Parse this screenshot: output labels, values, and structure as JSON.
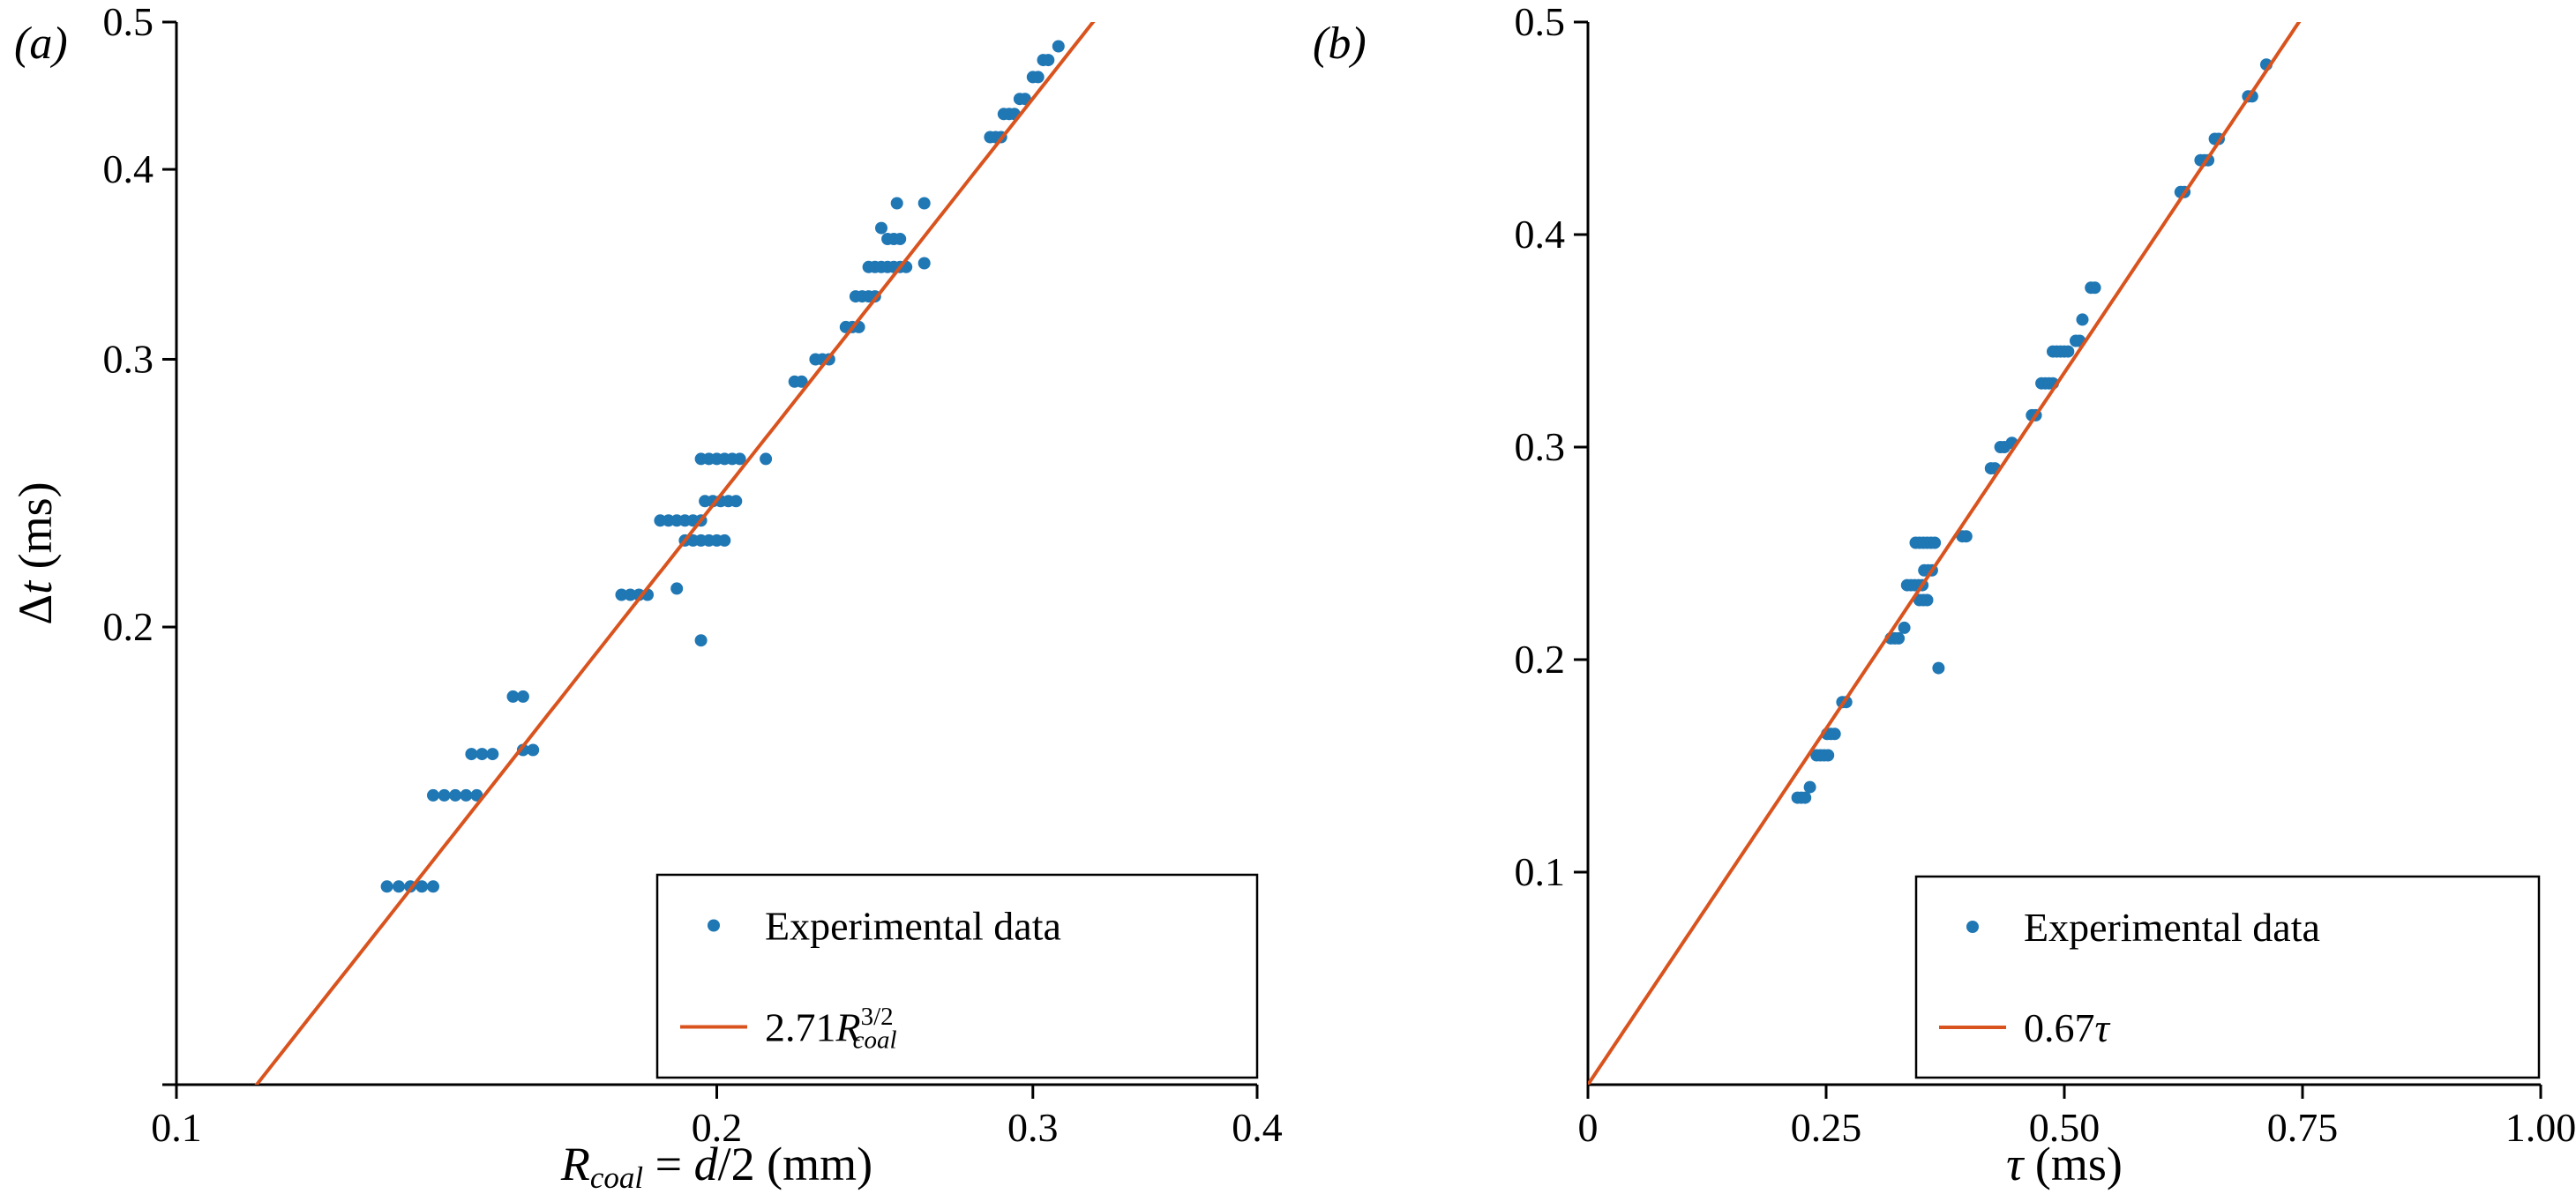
{
  "figure": {
    "background": "#ffffff",
    "text_color": "#000000",
    "data_color": "#1f77b4",
    "fit_color": "#d9531e"
  },
  "chart_data": [
    {
      "type": "scatter",
      "panel_label": "(a)",
      "panel_label_segments": [
        {
          "t": "(a)",
          "style": "italic"
        }
      ],
      "x_scale": "log",
      "y_scale": "log",
      "x_domain": [
        0.1,
        0.4
      ],
      "y_domain": [
        0.1,
        0.5
      ],
      "x_axis_label": "R_coal = d/2 (mm)",
      "y_axis_label": "Delta t (ms)",
      "x_title_segments": [
        {
          "t": "R",
          "style": "italic"
        },
        {
          "t": "coal",
          "pos": "sub",
          "style": "italic"
        },
        {
          "t": " = "
        },
        {
          "t": "d",
          "style": "italic"
        },
        {
          "t": "/2 (mm)"
        }
      ],
      "y_title_segments": [
        {
          "t": "Δ"
        },
        {
          "t": "t",
          "style": "italic"
        },
        {
          "t": " (ms)"
        }
      ],
      "x_ticks": [
        {
          "v": 0.1,
          "label": "0.1"
        },
        {
          "v": 0.2,
          "label": "0.2"
        },
        {
          "v": 0.3,
          "label": "0.3"
        },
        {
          "v": 0.4,
          "label": "0.4"
        }
      ],
      "y_ticks": [
        {
          "v": 0.5,
          "label": "0.5"
        },
        {
          "v": 0.4,
          "label": "0.4"
        },
        {
          "v": 0.3,
          "label": "0.3"
        },
        {
          "v": 0.2,
          "label": "0.2"
        },
        {
          "v": 0.1,
          "label": ""
        }
      ],
      "series": [
        {
          "name": "Experimental data",
          "kind": "scatter",
          "color": "#1f77b4",
          "points": [
            [
              0.131,
              0.135
            ],
            [
              0.133,
              0.135
            ],
            [
              0.135,
              0.135
            ],
            [
              0.137,
              0.135
            ],
            [
              0.139,
              0.135
            ],
            [
              0.139,
              0.155
            ],
            [
              0.141,
              0.155
            ],
            [
              0.143,
              0.155
            ],
            [
              0.145,
              0.155
            ],
            [
              0.147,
              0.155
            ],
            [
              0.146,
              0.165
            ],
            [
              0.148,
              0.165
            ],
            [
              0.15,
              0.165
            ],
            [
              0.156,
              0.166
            ],
            [
              0.158,
              0.166
            ],
            [
              0.154,
              0.18
            ],
            [
              0.156,
              0.18
            ],
            [
              0.177,
              0.21
            ],
            [
              0.179,
              0.21
            ],
            [
              0.181,
              0.21
            ],
            [
              0.183,
              0.21
            ],
            [
              0.19,
              0.212
            ],
            [
              0.196,
              0.196
            ],
            [
              0.186,
              0.235
            ],
            [
              0.188,
              0.235
            ],
            [
              0.19,
              0.235
            ],
            [
              0.192,
              0.235
            ],
            [
              0.194,
              0.235
            ],
            [
              0.196,
              0.235
            ],
            [
              0.192,
              0.228
            ],
            [
              0.194,
              0.228
            ],
            [
              0.196,
              0.228
            ],
            [
              0.198,
              0.228
            ],
            [
              0.2,
              0.228
            ],
            [
              0.202,
              0.228
            ],
            [
              0.197,
              0.242
            ],
            [
              0.199,
              0.242
            ],
            [
              0.201,
              0.242
            ],
            [
              0.203,
              0.242
            ],
            [
              0.205,
              0.242
            ],
            [
              0.196,
              0.258
            ],
            [
              0.198,
              0.258
            ],
            [
              0.2,
              0.258
            ],
            [
              0.202,
              0.258
            ],
            [
              0.204,
              0.258
            ],
            [
              0.206,
              0.258
            ],
            [
              0.213,
              0.258
            ],
            [
              0.221,
              0.29
            ],
            [
              0.223,
              0.29
            ],
            [
              0.227,
              0.3
            ],
            [
              0.229,
              0.3
            ],
            [
              0.231,
              0.3
            ],
            [
              0.236,
              0.315
            ],
            [
              0.238,
              0.315
            ],
            [
              0.24,
              0.315
            ],
            [
              0.239,
              0.33
            ],
            [
              0.241,
              0.33
            ],
            [
              0.243,
              0.33
            ],
            [
              0.245,
              0.33
            ],
            [
              0.243,
              0.345
            ],
            [
              0.245,
              0.345
            ],
            [
              0.247,
              0.345
            ],
            [
              0.249,
              0.345
            ],
            [
              0.251,
              0.345
            ],
            [
              0.253,
              0.345
            ],
            [
              0.255,
              0.345
            ],
            [
              0.261,
              0.347
            ],
            [
              0.249,
              0.36
            ],
            [
              0.251,
              0.36
            ],
            [
              0.253,
              0.36
            ],
            [
              0.247,
              0.366
            ],
            [
              0.252,
              0.38
            ],
            [
              0.261,
              0.38
            ],
            [
              0.284,
              0.42
            ],
            [
              0.286,
              0.42
            ],
            [
              0.288,
              0.42
            ],
            [
              0.289,
              0.435
            ],
            [
              0.291,
              0.435
            ],
            [
              0.293,
              0.435
            ],
            [
              0.295,
              0.445
            ],
            [
              0.297,
              0.445
            ],
            [
              0.3,
              0.46
            ],
            [
              0.302,
              0.46
            ],
            [
              0.304,
              0.472
            ],
            [
              0.306,
              0.472
            ],
            [
              0.31,
              0.482
            ]
          ]
        },
        {
          "name": "2.71 R_coal^(3/2)",
          "kind": "line",
          "color": "#d9531e",
          "fn": {
            "form": "power",
            "a": 2.71,
            "b": 1.5
          }
        }
      ],
      "legend": {
        "position": "lower right",
        "entries": [
          {
            "marker": "dot",
            "color": "#1f77b4",
            "label": "Experimental data",
            "segments": [
              {
                "t": "Experimental data"
              }
            ]
          },
          {
            "marker": "line",
            "color": "#d9531e",
            "label": "2.71 R_coal^(3/2)",
            "segments": [
              {
                "t": "2.71"
              },
              {
                "t": "R",
                "style": "italic"
              },
              {
                "t": "3/2",
                "pos": "sup"
              },
              {
                "t": "coal",
                "pos": "sub",
                "style": "italic",
                "dx": -46
              }
            ]
          }
        ]
      }
    },
    {
      "type": "scatter",
      "panel_label": "(b)",
      "panel_label_segments": [
        {
          "t": "(b)",
          "style": "italic"
        }
      ],
      "x_scale": "linear",
      "y_scale": "linear",
      "x_domain": [
        0,
        1.0
      ],
      "y_domain": [
        0,
        0.5
      ],
      "x_axis_label": "tau (ms)",
      "y_axis_label": "",
      "x_title_segments": [
        {
          "t": "τ",
          "style": "italic"
        },
        {
          "t": " (ms)"
        }
      ],
      "y_title_segments": null,
      "x_ticks": [
        {
          "v": 0,
          "label": "0"
        },
        {
          "v": 0.25,
          "label": "0.25"
        },
        {
          "v": 0.5,
          "label": "0.50"
        },
        {
          "v": 0.75,
          "label": "0.75"
        },
        {
          "v": 1.0,
          "label": "1.00"
        }
      ],
      "y_ticks": [
        {
          "v": 0.5,
          "label": "0.5"
        },
        {
          "v": 0.4,
          "label": "0.4"
        },
        {
          "v": 0.3,
          "label": "0.3"
        },
        {
          "v": 0.2,
          "label": "0.2"
        },
        {
          "v": 0.1,
          "label": "0.1"
        }
      ],
      "series": [
        {
          "name": "Experimental data",
          "kind": "scatter",
          "color": "#1f77b4",
          "points": [
            [
              0.22,
              0.135
            ],
            [
              0.224,
              0.135
            ],
            [
              0.228,
              0.135
            ],
            [
              0.233,
              0.14
            ],
            [
              0.24,
              0.155
            ],
            [
              0.244,
              0.155
            ],
            [
              0.248,
              0.155
            ],
            [
              0.252,
              0.155
            ],
            [
              0.251,
              0.165
            ],
            [
              0.255,
              0.165
            ],
            [
              0.259,
              0.165
            ],
            [
              0.267,
              0.18
            ],
            [
              0.271,
              0.18
            ],
            [
              0.318,
              0.21
            ],
            [
              0.322,
              0.21
            ],
            [
              0.326,
              0.21
            ],
            [
              0.332,
              0.215
            ],
            [
              0.335,
              0.235
            ],
            [
              0.339,
              0.235
            ],
            [
              0.343,
              0.235
            ],
            [
              0.347,
              0.235
            ],
            [
              0.351,
              0.235
            ],
            [
              0.348,
              0.228
            ],
            [
              0.352,
              0.228
            ],
            [
              0.356,
              0.228
            ],
            [
              0.353,
              0.242
            ],
            [
              0.357,
              0.242
            ],
            [
              0.361,
              0.242
            ],
            [
              0.368,
              0.196
            ],
            [
              0.344,
              0.255
            ],
            [
              0.348,
              0.255
            ],
            [
              0.352,
              0.255
            ],
            [
              0.356,
              0.255
            ],
            [
              0.36,
              0.255
            ],
            [
              0.364,
              0.255
            ],
            [
              0.393,
              0.258
            ],
            [
              0.397,
              0.258
            ],
            [
              0.423,
              0.29
            ],
            [
              0.427,
              0.29
            ],
            [
              0.433,
              0.3
            ],
            [
              0.437,
              0.3
            ],
            [
              0.445,
              0.302
            ],
            [
              0.466,
              0.315
            ],
            [
              0.47,
              0.315
            ],
            [
              0.476,
              0.33
            ],
            [
              0.48,
              0.33
            ],
            [
              0.484,
              0.33
            ],
            [
              0.488,
              0.33
            ],
            [
              0.488,
              0.345
            ],
            [
              0.492,
              0.345
            ],
            [
              0.496,
              0.345
            ],
            [
              0.5,
              0.345
            ],
            [
              0.504,
              0.345
            ],
            [
              0.512,
              0.35
            ],
            [
              0.516,
              0.35
            ],
            [
              0.519,
              0.36
            ],
            [
              0.528,
              0.375
            ],
            [
              0.532,
              0.375
            ],
            [
              0.622,
              0.42
            ],
            [
              0.626,
              0.42
            ],
            [
              0.643,
              0.435
            ],
            [
              0.647,
              0.435
            ],
            [
              0.651,
              0.435
            ],
            [
              0.658,
              0.445
            ],
            [
              0.662,
              0.445
            ],
            [
              0.693,
              0.465
            ],
            [
              0.697,
              0.465
            ],
            [
              0.712,
              0.48
            ]
          ]
        },
        {
          "name": "0.67 tau",
          "kind": "line",
          "color": "#d9531e",
          "fn": {
            "form": "linear",
            "a": 0.67
          }
        }
      ],
      "legend": {
        "position": "lower right",
        "entries": [
          {
            "marker": "dot",
            "color": "#1f77b4",
            "label": "Experimental data",
            "segments": [
              {
                "t": "Experimental data"
              }
            ]
          },
          {
            "marker": "line",
            "color": "#d9531e",
            "label": "0.67 tau",
            "segments": [
              {
                "t": "0.67"
              },
              {
                "t": "τ",
                "style": "italic"
              }
            ]
          }
        ]
      }
    }
  ]
}
